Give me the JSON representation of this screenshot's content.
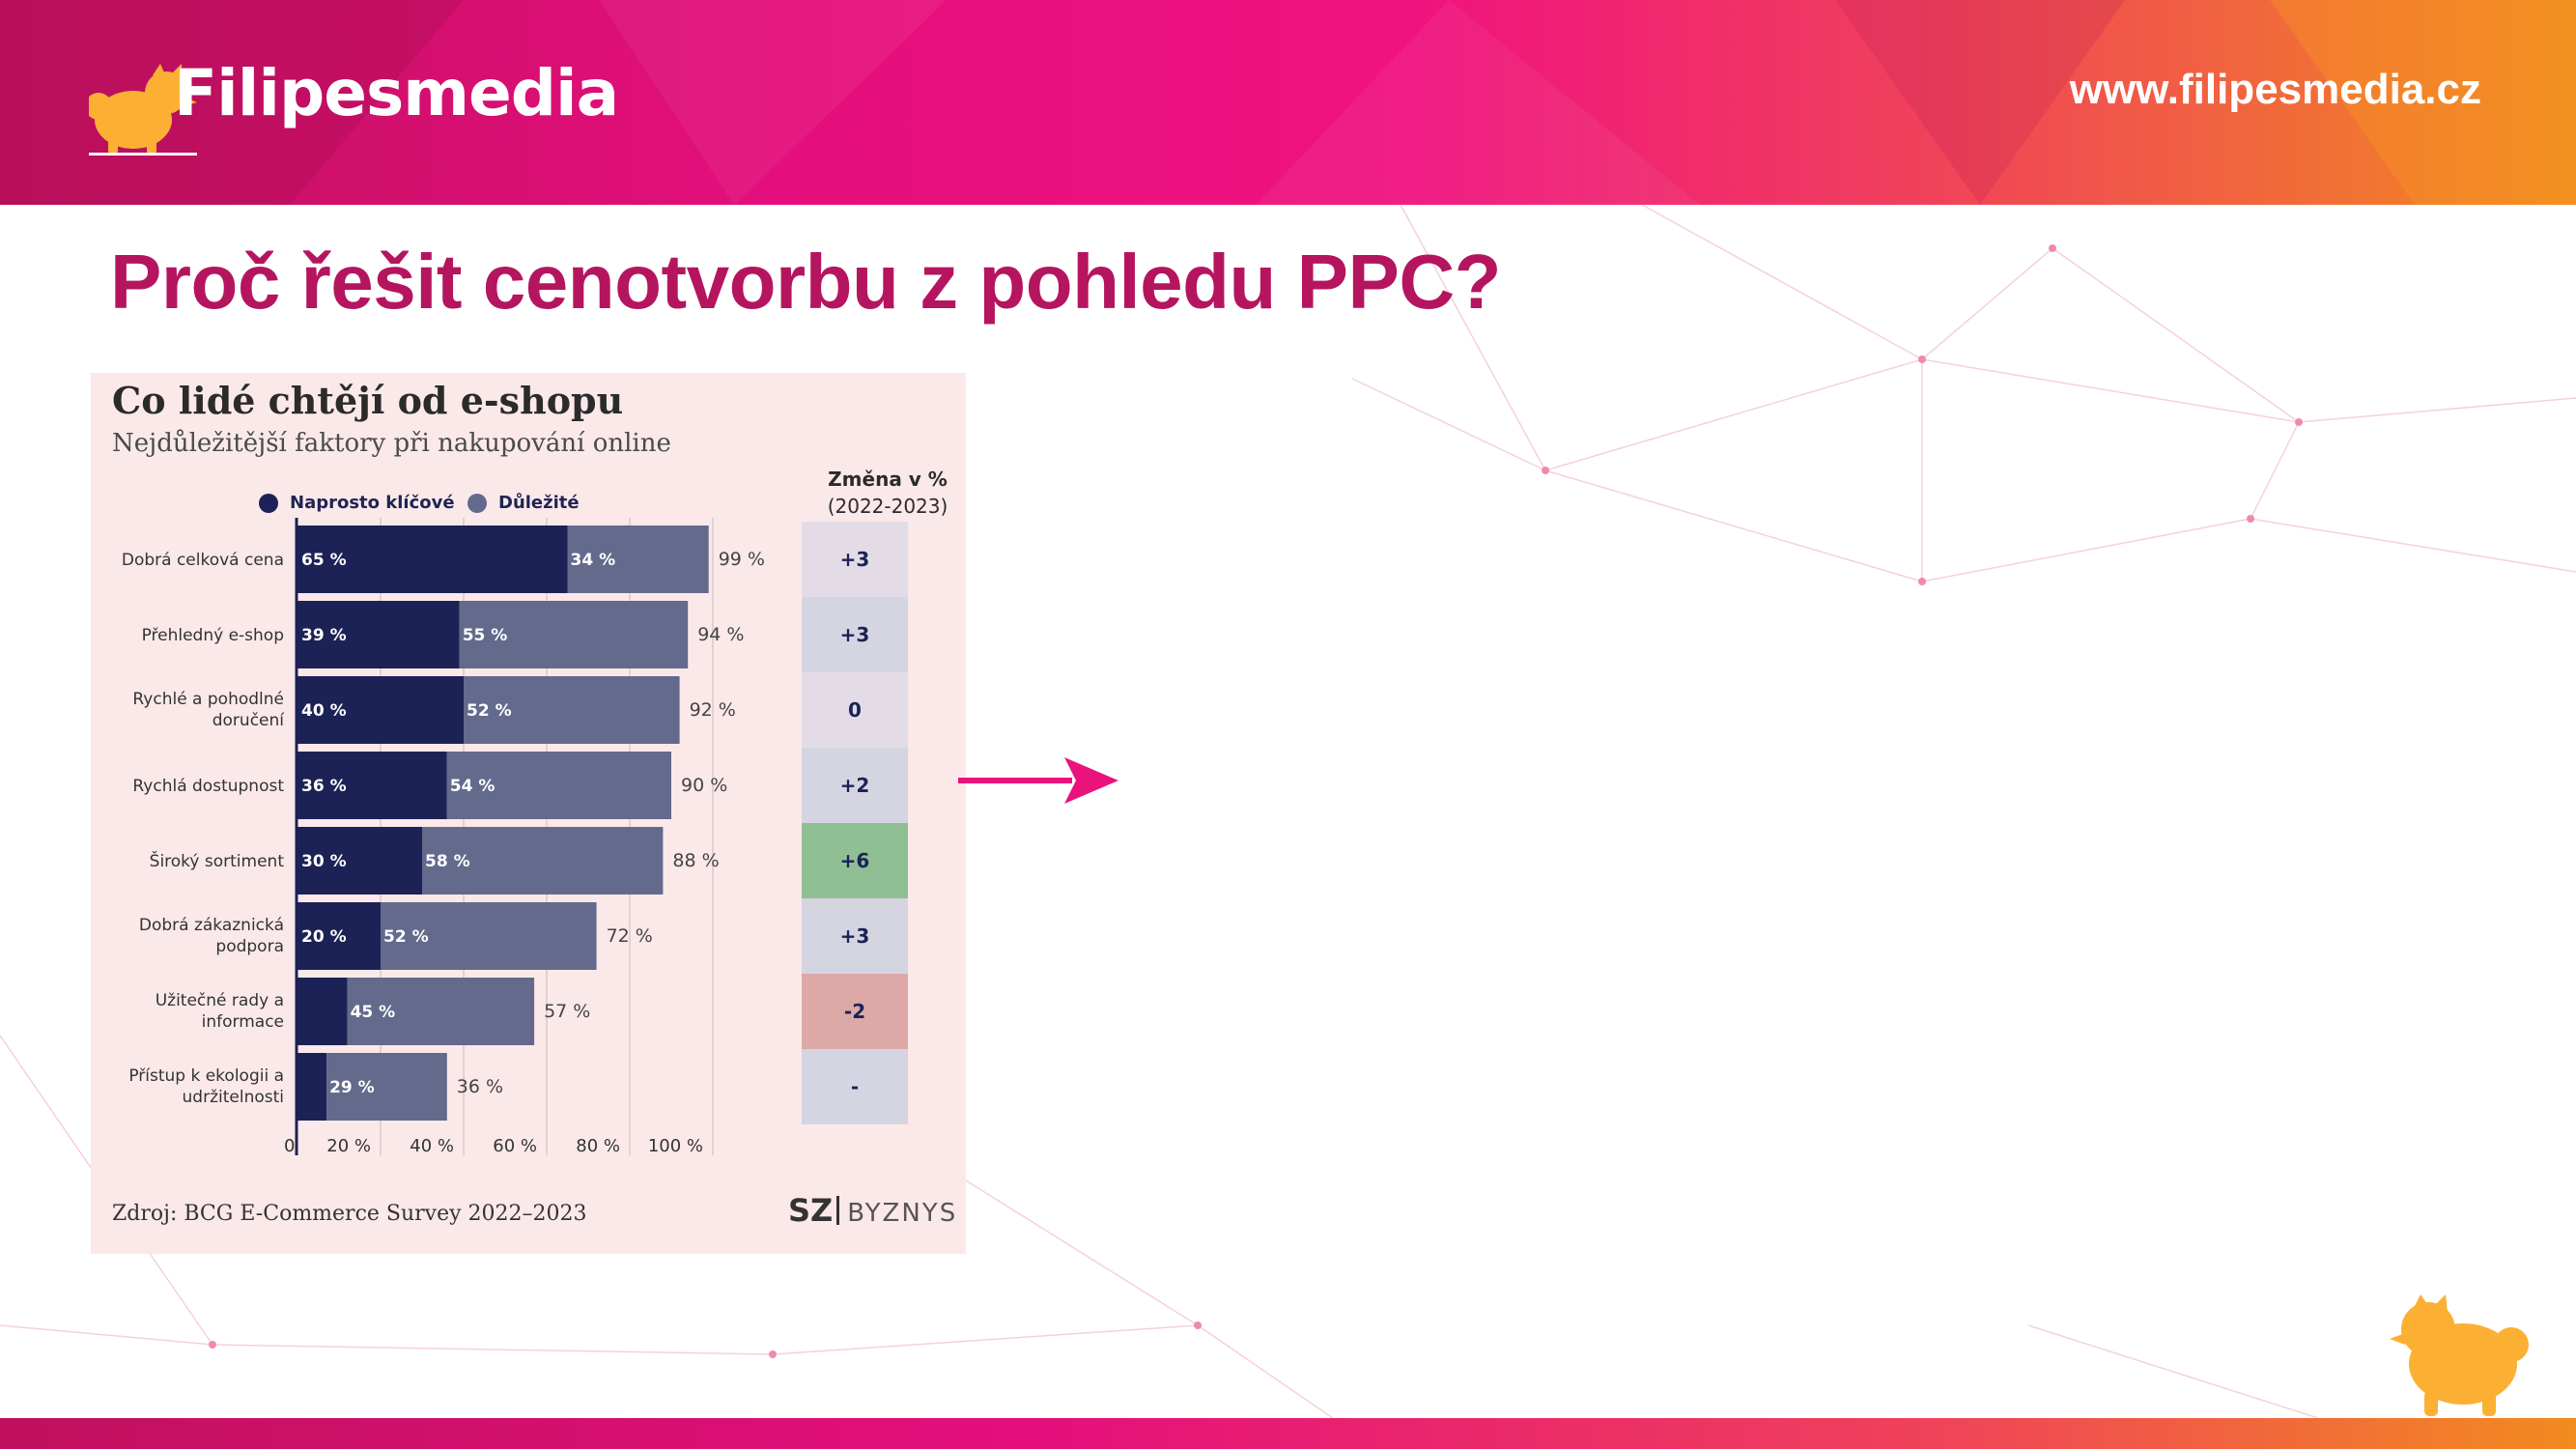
{
  "header": {
    "brand": "Filipesmedia",
    "url": "www.filipesmedia.cz"
  },
  "page": {
    "title": "Proč řešit cenotvorbu z pohledu PPC?"
  },
  "colors": {
    "accent": "#b5155f",
    "arrow": "#ea127b",
    "key_series": "#1c2255",
    "important_series": "#636a8c",
    "panel_bg": "#fbe9ea",
    "change_positive_strong": "#8fbf93",
    "change_negative": "#dca9a6",
    "change_neutral": "#d5d5e2",
    "dog": "#fbb034"
  },
  "icons": {
    "logo": "pomeranian-dog-icon",
    "arrow": "arrow-right-icon"
  },
  "chart_data": {
    "type": "bar",
    "orientation": "horizontal",
    "stacked": true,
    "title": "Co lidé chtějí od e-shopu",
    "subtitle": "Nejdůležitější faktory při nakupování online",
    "categories": [
      "Dobrá celková cena",
      "Přehledný e-shop",
      "Rychlé a pohodlné doručení",
      "Rychlá dostupnost",
      "Široký sortiment",
      "Dobrá zákaznická podpora",
      "Užitečné rady a informace",
      "Přístup k ekologii a udržitelnosti"
    ],
    "category_lines": [
      [
        "Dobrá celková cena"
      ],
      [
        "Přehledný e-shop"
      ],
      [
        "Rychlé a pohodlné",
        "doručení"
      ],
      [
        "Rychlá dostupnost"
      ],
      [
        "Široký sortiment"
      ],
      [
        "Dobrá zákaznická",
        "podpora"
      ],
      [
        "Užitečné rady a",
        "informace"
      ],
      [
        "Přístup k ekologii a",
        "udržitelnosti"
      ]
    ],
    "series": [
      {
        "name": "Naprosto klíčové",
        "values": [
          65,
          39,
          40,
          36,
          30,
          20,
          12,
          7
        ],
        "labels": [
          "65 %",
          "39 %",
          "40 %",
          "36 %",
          "30 %",
          "20 %",
          "",
          ""
        ]
      },
      {
        "name": "Důležité",
        "values": [
          34,
          55,
          52,
          54,
          58,
          52,
          45,
          29
        ],
        "labels": [
          "34 %",
          "55 %",
          "52 %",
          "54 %",
          "58 %",
          "52 %",
          "45 %",
          "29 %"
        ]
      }
    ],
    "totals": [
      "99 %",
      "94 %",
      "92 %",
      "90 %",
      "88 %",
      "72 %",
      "57 %",
      "36 %"
    ],
    "change_column": {
      "title": "Změna v %",
      "subtitle": "(2022-2023)",
      "values": [
        "+3",
        "+3",
        "0",
        "+2",
        "+6",
        "+3",
        "-2",
        "-"
      ]
    },
    "x_ticks": [
      "0",
      "20 %",
      "40 %",
      "60 %",
      "80 %",
      "100 %"
    ],
    "xlim": [
      0,
      100
    ],
    "grid": true,
    "legend": "top",
    "source": "Zdroj: BCG E-Commerce Survey 2022–2023",
    "publisher": {
      "mark": "SZ",
      "name": "BYZNYS"
    }
  }
}
